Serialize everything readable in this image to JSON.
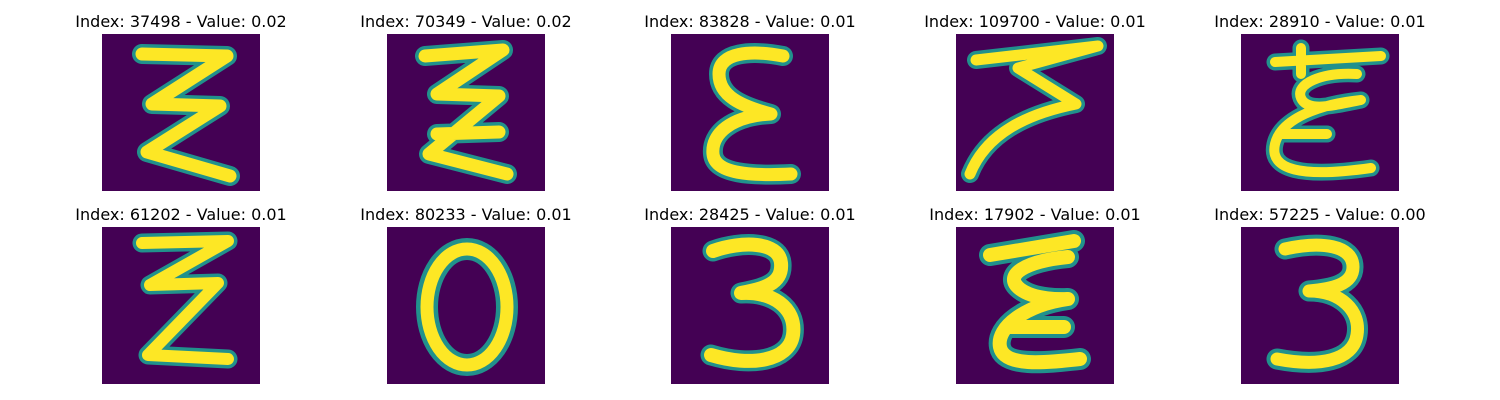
{
  "colors": {
    "background": "#440154",
    "stroke": "#fde725",
    "edge": "#21918c",
    "page": "#ffffff"
  },
  "samples": [
    {
      "index": "37498",
      "value": "0.02",
      "title": "Index: 37498 - Value: 0.02",
      "glyph": "zigzag-three-stroke"
    },
    {
      "index": "70349",
      "value": "0.02",
      "title": "Index: 70349 - Value: 0.02",
      "glyph": "zigzag-e-shape"
    },
    {
      "index": "83828",
      "value": "0.01",
      "title": "Index: 83828 - Value: 0.01",
      "glyph": "epsilon"
    },
    {
      "index": "109700",
      "value": "0.01",
      "title": "Index: 109700 - Value: 0.01",
      "glyph": "slanted-z"
    },
    {
      "index": "28910",
      "value": "0.01",
      "title": "Index: 28910 - Value: 0.01",
      "glyph": "looped-epsilon"
    },
    {
      "index": "61202",
      "value": "0.01",
      "title": "Index: 61202 - Value: 0.01",
      "glyph": "zigzag-z"
    },
    {
      "index": "80233",
      "value": "0.01",
      "title": "Index: 80233 - Value: 0.01",
      "glyph": "zero"
    },
    {
      "index": "28425",
      "value": "0.01",
      "title": "Index: 28425 - Value: 0.01",
      "glyph": "three"
    },
    {
      "index": "17902",
      "value": "0.01",
      "title": "Index: 17902 - Value: 0.01",
      "glyph": "bold-epsilon"
    },
    {
      "index": "57225",
      "value": "0.00",
      "title": "Index: 57225 - Value: 0.00",
      "glyph": "three-open"
    }
  ]
}
